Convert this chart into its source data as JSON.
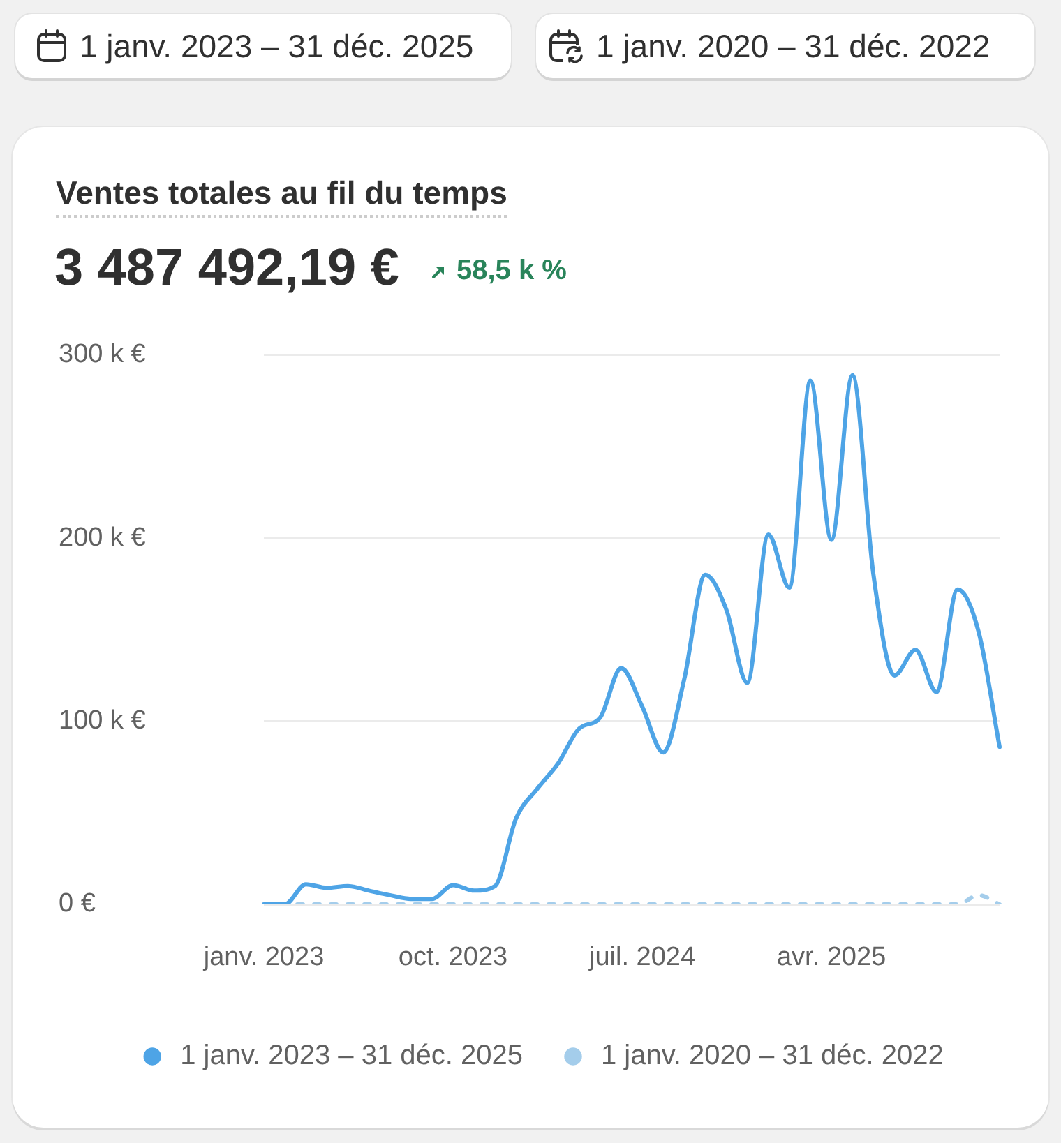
{
  "chart_data": {
    "type": "line",
    "title": "Ventes totales au fil du temps",
    "subtitle": "3 487 492,19 €",
    "annotations": [
      "1 janv. 2023 – 31 déc. 2025",
      "1 janv. 2020 – 31 déc. 2022",
      "58,5 k %"
    ],
    "categories": [
      "janv. 2023",
      null,
      null,
      null,
      null,
      null,
      null,
      null,
      null,
      "oct. 2023",
      null,
      null,
      null,
      null,
      null,
      null,
      null,
      null,
      "juil. 2024",
      null,
      null,
      null,
      null,
      null,
      null,
      null,
      null,
      "avr. 2025",
      null,
      null,
      null,
      null,
      null,
      null,
      null,
      null
    ],
    "series": [
      {
        "name": "1 janv. 2023 – 31 déc. 2025",
        "color": "#4ea4e6",
        "line_style": "solid",
        "values": [
          0,
          0,
          11000,
          9000,
          10000,
          7500,
          5000,
          3000,
          3000,
          10500,
          7500,
          10000,
          47000,
          63000,
          77000,
          96000,
          102000,
          129000,
          108000,
          83000,
          123000,
          180000,
          161000,
          121000,
          202000,
          173000,
          286000,
          199000,
          289000,
          180000,
          125000,
          139000,
          116000,
          172000,
          149000,
          86000
        ]
      },
      {
        "name": "1 janv. 2020 – 31 déc. 2022",
        "color": "#a4cdeb",
        "line_style": "dashed",
        "values": [
          0,
          0,
          0,
          0,
          0,
          0,
          0,
          0,
          0,
          0,
          0,
          0,
          0,
          0,
          0,
          0,
          0,
          0,
          0,
          0,
          0,
          0,
          0,
          0,
          0,
          0,
          0,
          0,
          0,
          0,
          0,
          0,
          0,
          0,
          5000,
          0
        ]
      }
    ],
    "ylim": [
      0,
      300000
    ],
    "yticks": [
      {
        "value": 0,
        "label": "0 €"
      },
      {
        "value": 100000,
        "label": "100 k €"
      },
      {
        "value": 200000,
        "label": "200 k €"
      },
      {
        "value": 300000,
        "label": "300 k €"
      }
    ],
    "grid": "y",
    "legend": "bottom",
    "marker": "none"
  }
}
